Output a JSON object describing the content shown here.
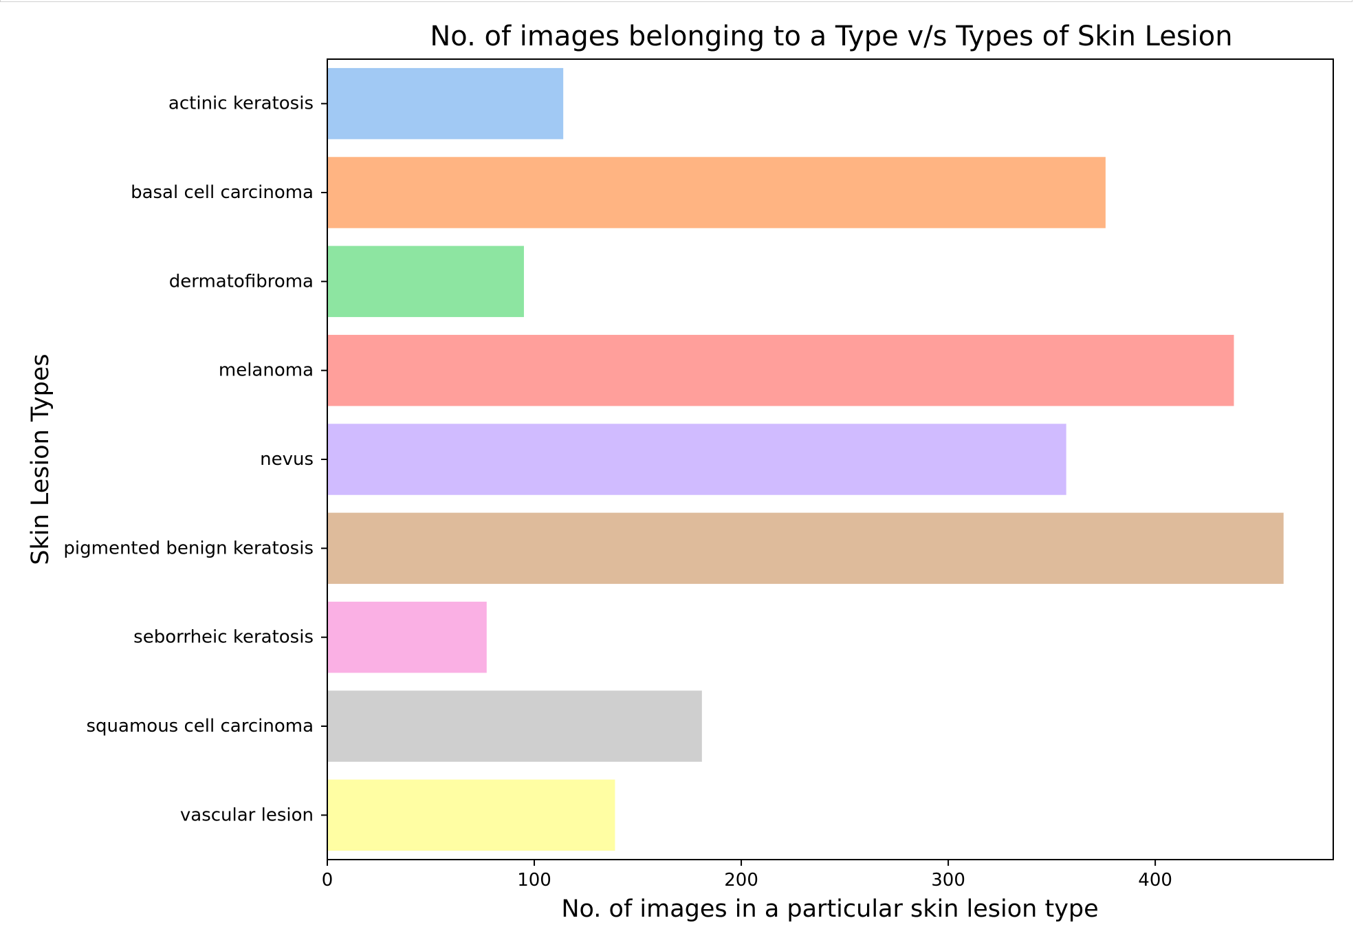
{
  "chart_data": {
    "type": "bar",
    "orientation": "horizontal",
    "title": "No. of images belonging to a Type v/s Types of Skin Lesion",
    "xlabel": "No. of images in a particular skin lesion type",
    "ylabel": "Skin Lesion Types",
    "xlim": [
      0,
      486
    ],
    "xticks": [
      0,
      100,
      200,
      300,
      400
    ],
    "grid": false,
    "legend": "none",
    "categories": [
      "actinic keratosis",
      "basal cell carcinoma",
      "dermatofibroma",
      "melanoma",
      "nevus",
      "pigmented benign keratosis",
      "seborrheic keratosis",
      "squamous cell carcinoma",
      "vascular lesion"
    ],
    "values": [
      114,
      376,
      95,
      438,
      357,
      462,
      77,
      181,
      139
    ],
    "colors": [
      "#a1c9f4",
      "#ffb482",
      "#8de5a1",
      "#ff9f9b",
      "#d0bbff",
      "#debb9b",
      "#fab0e4",
      "#cfcfcf",
      "#fffea3"
    ]
  }
}
